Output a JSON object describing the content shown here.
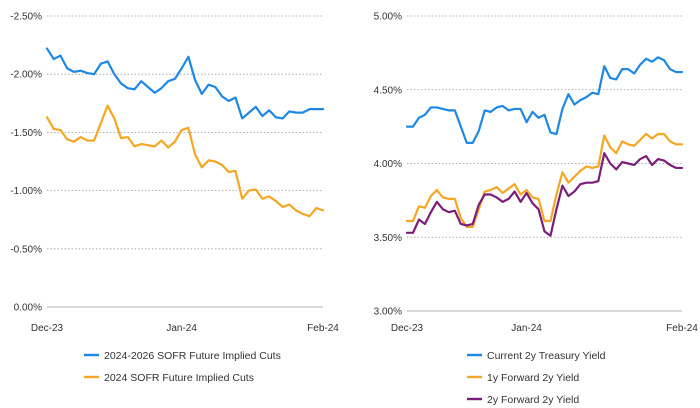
{
  "chart_data": [
    {
      "type": "line",
      "x": [
        "Dec-23",
        "Dec-23",
        "Dec-23",
        "Dec-23",
        "Dec-23",
        "Dec-23",
        "Dec-23",
        "Dec-23",
        "Dec-23",
        "Dec-23",
        "Dec-23",
        "Dec-23",
        "Dec-23",
        "Dec-23",
        "Dec-23",
        "Dec-23",
        "Dec-23",
        "Dec-23",
        "Dec-23",
        "Dec-23",
        "Jan-24",
        "Jan-24",
        "Jan-24",
        "Jan-24",
        "Jan-24",
        "Jan-24",
        "Jan-24",
        "Jan-24",
        "Jan-24",
        "Jan-24",
        "Jan-24",
        "Jan-24",
        "Jan-24",
        "Jan-24",
        "Jan-24",
        "Jan-24",
        "Jan-24",
        "Jan-24",
        "Jan-24",
        "Jan-24",
        "Jan-24",
        "Feb-24"
      ],
      "x_ticks": [
        "Dec-23",
        "Jan-24",
        "Feb-24"
      ],
      "y_ticks": [
        "-2.50%",
        "-2.00%",
        "-1.50%",
        "-1.00%",
        "-0.50%",
        "0.00%"
      ],
      "ylim": [
        0,
        -2.5
      ],
      "y_inverted": true,
      "grid": true,
      "legend_position": "bottom-left",
      "series": [
        {
          "name": "2024-2026 SOFR Future Implied Cuts",
          "color": "#1e88e5",
          "values": [
            -2.22,
            -2.13,
            -2.16,
            -2.05,
            -2.02,
            -2.03,
            -2.01,
            -2.0,
            -2.09,
            -2.11,
            -2.0,
            -1.92,
            -1.88,
            -1.87,
            -1.94,
            -1.89,
            -1.84,
            -1.88,
            -1.94,
            -1.96,
            -2.05,
            -2.15,
            -1.95,
            -1.83,
            -1.91,
            -1.89,
            -1.81,
            -1.77,
            -1.8,
            -1.62,
            -1.67,
            -1.72,
            -1.64,
            -1.69,
            -1.63,
            -1.62,
            -1.68,
            -1.67,
            -1.67,
            -1.7,
            -1.7,
            -1.7
          ]
        },
        {
          "name": "2024 SOFR Future Implied Cuts",
          "color": "#f5a623",
          "values": [
            -1.63,
            -1.53,
            -1.52,
            -1.44,
            -1.42,
            -1.46,
            -1.43,
            -1.43,
            -1.58,
            -1.73,
            -1.62,
            -1.45,
            -1.46,
            -1.38,
            -1.4,
            -1.39,
            -1.38,
            -1.43,
            -1.37,
            -1.42,
            -1.52,
            -1.54,
            -1.31,
            -1.2,
            -1.26,
            -1.25,
            -1.22,
            -1.16,
            -1.17,
            -0.93,
            -1.0,
            -1.01,
            -0.93,
            -0.95,
            -0.91,
            -0.86,
            -0.88,
            -0.83,
            -0.8,
            -0.78,
            -0.85,
            -0.83
          ]
        }
      ]
    },
    {
      "type": "line",
      "x": [
        "Dec-23",
        "Dec-23",
        "Dec-23",
        "Dec-23",
        "Dec-23",
        "Dec-23",
        "Dec-23",
        "Dec-23",
        "Dec-23",
        "Dec-23",
        "Dec-23",
        "Dec-23",
        "Dec-23",
        "Dec-23",
        "Dec-23",
        "Dec-23",
        "Dec-23",
        "Dec-23",
        "Dec-23",
        "Dec-23",
        "Jan-24",
        "Jan-24",
        "Jan-24",
        "Jan-24",
        "Jan-24",
        "Jan-24",
        "Jan-24",
        "Jan-24",
        "Jan-24",
        "Jan-24",
        "Jan-24",
        "Jan-24",
        "Jan-24",
        "Jan-24",
        "Jan-24",
        "Jan-24",
        "Jan-24",
        "Jan-24",
        "Jan-24",
        "Jan-24",
        "Jan-24",
        "Jan-24",
        "Jan-24",
        "Jan-24",
        "Jan-24",
        "Jan-24",
        "Feb-24"
      ],
      "x_ticks": [
        "Dec-23",
        "Jan-24",
        "Feb-24"
      ],
      "y_ticks": [
        "5.00%",
        "4.50%",
        "4.00%",
        "3.50%",
        "3.00%"
      ],
      "ylim": [
        3.0,
        5.0
      ],
      "grid": true,
      "legend_position": "bottom-left",
      "series": [
        {
          "name": "Current 2y Treasury Yield",
          "color": "#1e88e5",
          "values": [
            4.25,
            4.25,
            4.31,
            4.33,
            4.38,
            4.38,
            4.37,
            4.36,
            4.36,
            4.25,
            4.14,
            4.14,
            4.22,
            4.36,
            4.35,
            4.38,
            4.39,
            4.36,
            4.37,
            4.37,
            4.28,
            4.35,
            4.31,
            4.33,
            4.21,
            4.2,
            4.37,
            4.47,
            4.4,
            4.43,
            4.45,
            4.48,
            4.47,
            4.66,
            4.58,
            4.57,
            4.64,
            4.64,
            4.61,
            4.67,
            4.71,
            4.69,
            4.72,
            4.7,
            4.64,
            4.62,
            4.62
          ]
        },
        {
          "name": "1y Forward 2y Yield",
          "color": "#f5a623",
          "values": [
            3.61,
            3.61,
            3.71,
            3.7,
            3.78,
            3.82,
            3.77,
            3.76,
            3.76,
            3.63,
            3.57,
            3.57,
            3.69,
            3.81,
            3.82,
            3.84,
            3.8,
            3.83,
            3.86,
            3.79,
            3.82,
            3.77,
            3.76,
            3.61,
            3.61,
            3.79,
            3.94,
            3.87,
            3.91,
            3.95,
            3.98,
            3.97,
            3.98,
            4.19,
            4.11,
            4.07,
            4.15,
            4.13,
            4.12,
            4.16,
            4.2,
            4.17,
            4.2,
            4.2,
            4.15,
            4.13,
            4.13
          ]
        },
        {
          "name": "2y Forward 2y Yield",
          "color": "#7b1e7a",
          "values": [
            3.53,
            3.53,
            3.62,
            3.59,
            3.67,
            3.74,
            3.69,
            3.67,
            3.68,
            3.59,
            3.58,
            3.59,
            3.72,
            3.79,
            3.79,
            3.77,
            3.74,
            3.76,
            3.81,
            3.74,
            3.8,
            3.73,
            3.69,
            3.54,
            3.51,
            3.69,
            3.85,
            3.78,
            3.81,
            3.86,
            3.87,
            3.87,
            3.88,
            4.07,
            4.0,
            3.96,
            4.01,
            4.0,
            3.99,
            4.03,
            4.05,
            3.99,
            4.03,
            4.02,
            3.99,
            3.97,
            3.97
          ]
        }
      ]
    }
  ]
}
